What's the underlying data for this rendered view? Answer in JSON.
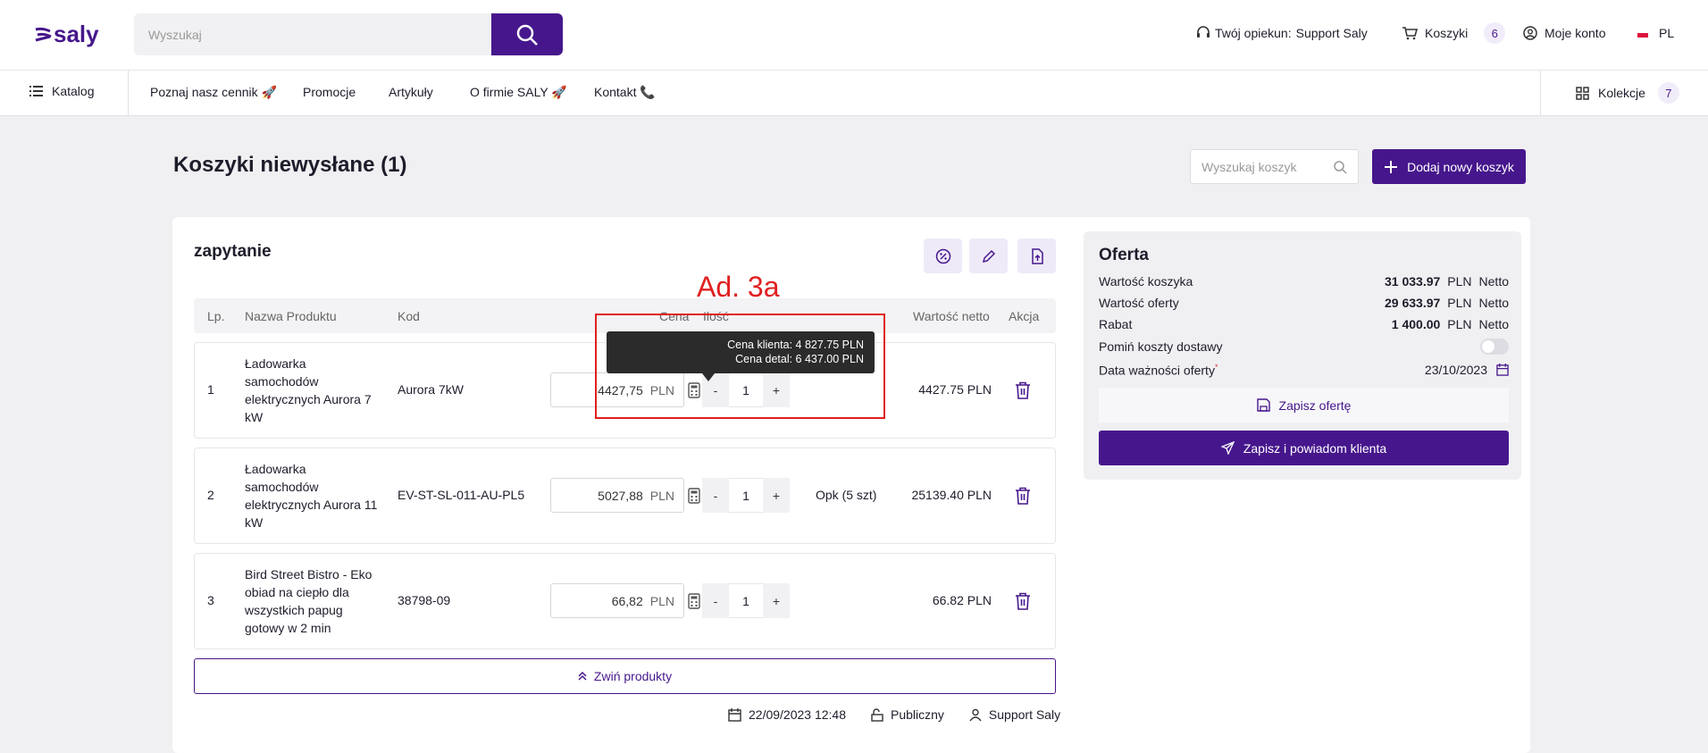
{
  "header": {
    "logo": "saly",
    "search_placeholder": "Wyszukaj",
    "support_label": "Twój opiekun:",
    "support_name": "Support Saly",
    "carts_label": "Koszyki",
    "carts_count": 6,
    "account": "Moje konto",
    "language": "PL"
  },
  "nav": {
    "catalog": "Katalog",
    "links": [
      "Poznaj nasz cennik 🚀",
      "Promocje",
      "Artykuły",
      "O firmie SALY 🚀",
      "Kontakt 📞"
    ],
    "collections": "Kolekcje",
    "collections_count": 7
  },
  "page": {
    "title": "Koszyki niewysłane (1)",
    "search_placeholder": "Wyszukaj koszyk",
    "add_button": "Dodaj nowy koszyk"
  },
  "cart": {
    "name": "zapytanie",
    "columns": {
      "lp": "Lp.",
      "name": "Nazwa Produktu",
      "code": "Kod",
      "price": "Cena",
      "quantity": "Ilość",
      "value": "Wartość netto",
      "action": "Akcja"
    },
    "rows": [
      {
        "lp": 1,
        "name": "Ładowarka samochodów elektrycznych Aurora 7 kW",
        "code": "Aurora 7kW",
        "price": "4427,75",
        "currency": "PLN",
        "minus": "-",
        "quantity": 1,
        "plus": "+",
        "value": "4427.75 PLN"
      },
      {
        "lp": 2,
        "name": "Ładowarka samochodów elektrycznych Aurora 11 kW",
        "code": "EV-ST-SL-011-AU-PL5",
        "price": "5027,88",
        "currency": "PLN",
        "minus": "-",
        "quantity": 1,
        "plus": "+",
        "unit": "Opk (5 szt)",
        "value": "25139.40 PLN"
      },
      {
        "lp": 3,
        "name": "Bird Street Bistro - Eko obiad na ciepło dla wszystkich papug gotowy w 2 min",
        "code": "38798-09",
        "price": "66,82",
        "currency": "PLN",
        "minus": "-",
        "quantity": 1,
        "plus": "+",
        "value": "66.82 PLN"
      }
    ],
    "collapse": "Zwiń produkty",
    "created": "22/09/2023 12:48",
    "visibility": "Publiczny",
    "owner": "Support Saly"
  },
  "tooltip": {
    "client_price": "Cena klienta: 4 827.75 PLN",
    "retail_price": "Cena detal: 6 437.00 PLN"
  },
  "annotation": "Ad. 3a",
  "offer": {
    "title": "Oferta",
    "lines": [
      {
        "label": "Wartość koszyka",
        "value": "31 033.97",
        "currency": "PLN",
        "basis": "Netto"
      },
      {
        "label": "Wartość oferty",
        "value": "29 633.97",
        "currency": "PLN",
        "basis": "Netto"
      },
      {
        "label": "Rabat",
        "value": "1 400.00",
        "currency": "PLN",
        "basis": "Netto"
      }
    ],
    "skip_shipping": "Pomiń koszty dostawy",
    "validity_label": "Data ważności oferty",
    "required_mark": "*",
    "validity_date": "23/10/2023",
    "save": "Zapisz ofertę",
    "save_notify": "Zapisz i powiadom klienta"
  }
}
